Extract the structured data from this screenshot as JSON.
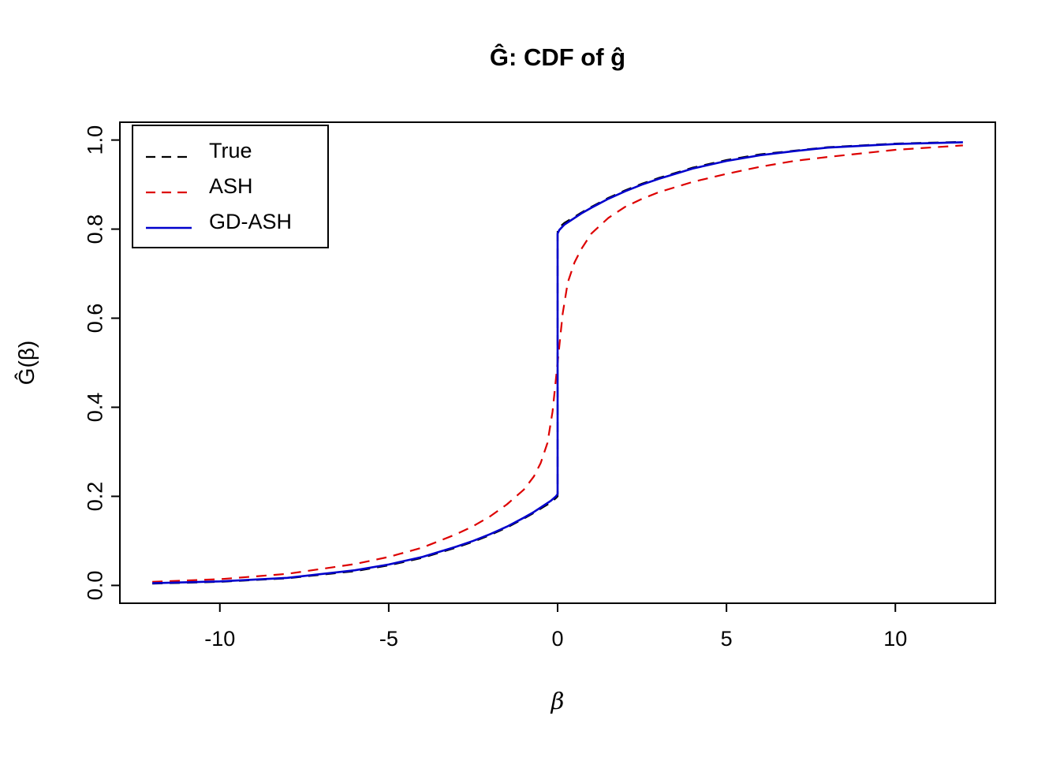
{
  "chart_data": {
    "type": "line",
    "title": "Ĝ: CDF of ĝ",
    "xlabel": "β",
    "ylabel": "Ĝ(β)",
    "xlim": [
      -12.96,
      12.96
    ],
    "ylim": [
      -0.04,
      1.04
    ],
    "xticks": [
      -10,
      -5,
      0,
      5,
      10
    ],
    "yticks": [
      0.0,
      0.2,
      0.4,
      0.6,
      0.8,
      1.0
    ],
    "grid": false,
    "legend_position": "top-left",
    "series": [
      {
        "name": "True",
        "color": "#000000",
        "dash": "dashed",
        "width": 2.2,
        "x": [
          -12,
          -10,
          -8,
          -6,
          -5,
          -4,
          -3,
          -2.5,
          -2,
          -1.5,
          -1,
          -0.7,
          -0.4,
          -0.2,
          -0.05,
          0,
          0,
          0.05,
          0.2,
          0.4,
          0.7,
          1,
          1.5,
          2,
          2.5,
          3,
          4,
          5,
          6,
          7,
          8,
          10,
          12
        ],
        "y": [
          0.004,
          0.008,
          0.016,
          0.032,
          0.045,
          0.062,
          0.085,
          0.098,
          0.113,
          0.13,
          0.15,
          0.163,
          0.177,
          0.186,
          0.196,
          0.2,
          0.8,
          0.804,
          0.814,
          0.823,
          0.837,
          0.85,
          0.87,
          0.887,
          0.902,
          0.915,
          0.938,
          0.955,
          0.968,
          0.976,
          0.984,
          0.992,
          0.996
        ]
      },
      {
        "name": "ASH",
        "color": "#dd0000",
        "dash": "dashed",
        "width": 2.2,
        "x": [
          -12,
          -10,
          -8,
          -6,
          -5,
          -4,
          -3,
          -2.5,
          -2,
          -1.5,
          -1,
          -0.7,
          -0.5,
          -0.3,
          -0.15,
          0,
          0.15,
          0.3,
          0.5,
          0.7,
          1,
          1.5,
          2,
          2.5,
          3,
          4,
          5,
          6,
          7,
          8,
          10,
          12
        ],
        "y": [
          0.008,
          0.014,
          0.026,
          0.048,
          0.064,
          0.085,
          0.115,
          0.133,
          0.155,
          0.182,
          0.215,
          0.245,
          0.275,
          0.32,
          0.39,
          0.5,
          0.61,
          0.68,
          0.725,
          0.755,
          0.79,
          0.825,
          0.85,
          0.868,
          0.883,
          0.906,
          0.924,
          0.94,
          0.953,
          0.962,
          0.978,
          0.988
        ]
      },
      {
        "name": "GD-ASH",
        "color": "#0000cc",
        "dash": "solid",
        "width": 2.6,
        "x": [
          -12,
          -10,
          -8,
          -6,
          -5,
          -4,
          -3,
          -2.5,
          -2,
          -1.5,
          -1,
          -0.7,
          -0.4,
          -0.2,
          -0.05,
          0,
          0,
          0.05,
          0.2,
          0.4,
          0.7,
          1,
          1.5,
          2,
          2.5,
          3,
          4,
          5,
          6,
          7,
          8,
          10,
          12
        ],
        "y": [
          0.005,
          0.009,
          0.017,
          0.034,
          0.047,
          0.064,
          0.087,
          0.1,
          0.115,
          0.132,
          0.152,
          0.165,
          0.18,
          0.19,
          0.2,
          0.205,
          0.79,
          0.798,
          0.81,
          0.82,
          0.835,
          0.848,
          0.868,
          0.885,
          0.9,
          0.913,
          0.936,
          0.953,
          0.966,
          0.975,
          0.983,
          0.991,
          0.995
        ]
      }
    ]
  }
}
